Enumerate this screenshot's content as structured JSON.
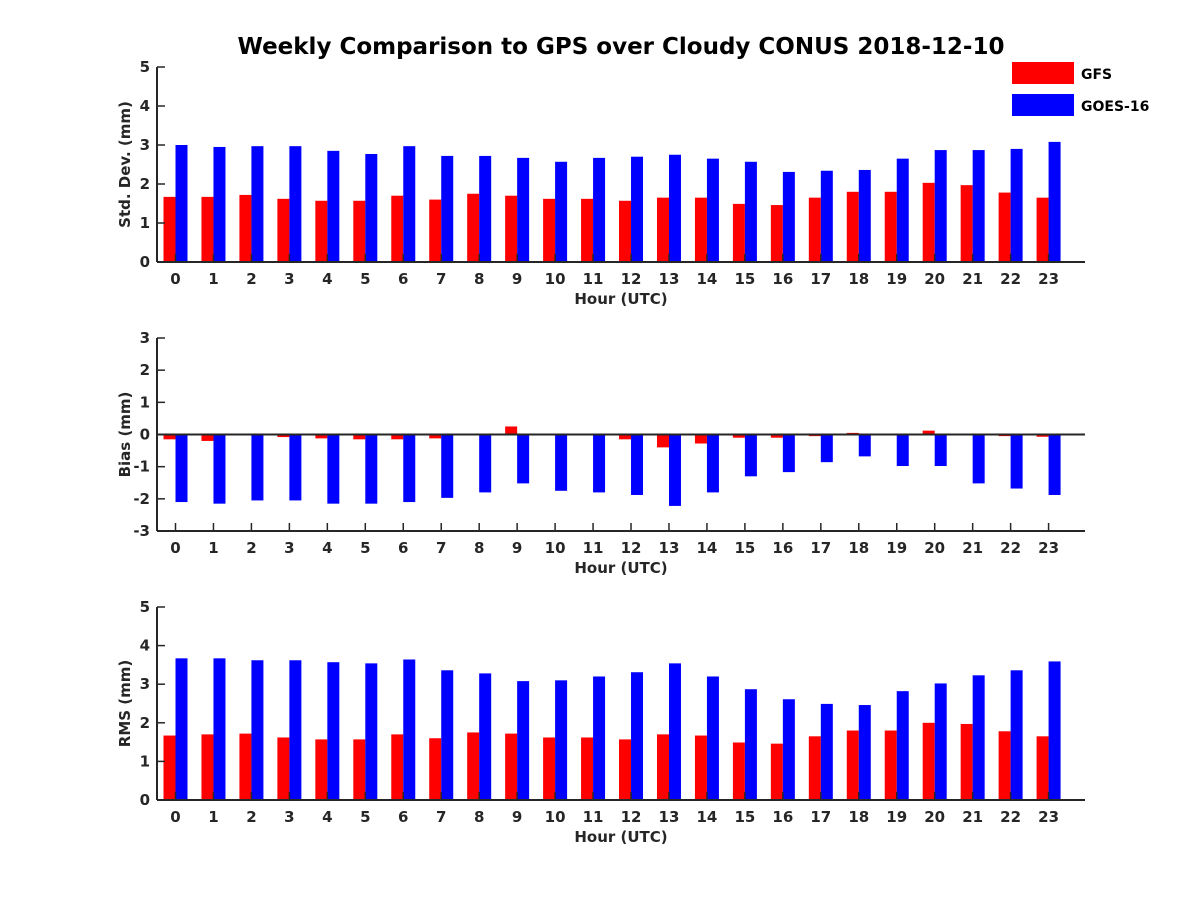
{
  "figure": {
    "title": "Weekly Comparison to GPS over Cloudy CONUS 2018-12-10"
  },
  "legend": {
    "placement": "top-right",
    "entries": [
      {
        "name": "GFS",
        "color": "#ff0000"
      },
      {
        "name": "GOES-16",
        "color": "#0000ff"
      }
    ]
  },
  "chart_data": [
    {
      "type": "bar",
      "xlabel": "Hour (UTC)",
      "ylabel": "Std. Dev. (mm)",
      "ylim": [
        0,
        5
      ],
      "yticks": [
        0,
        1,
        2,
        3,
        4,
        5
      ],
      "categories": [
        "0",
        "1",
        "2",
        "3",
        "4",
        "5",
        "6",
        "7",
        "8",
        "9",
        "10",
        "11",
        "12",
        "13",
        "14",
        "15",
        "16",
        "17",
        "18",
        "19",
        "20",
        "21",
        "22",
        "23"
      ],
      "series": [
        {
          "name": "GFS",
          "color": "#ff0000",
          "values": [
            1.67,
            1.67,
            1.72,
            1.62,
            1.57,
            1.57,
            1.7,
            1.6,
            1.75,
            1.7,
            1.62,
            1.62,
            1.57,
            1.65,
            1.65,
            1.49,
            1.46,
            1.65,
            1.8,
            1.8,
            2.03,
            1.97,
            1.78,
            1.65
          ]
        },
        {
          "name": "GOES-16",
          "color": "#0000ff",
          "values": [
            3.0,
            2.95,
            2.97,
            2.97,
            2.85,
            2.77,
            2.97,
            2.72,
            2.72,
            2.67,
            2.57,
            2.67,
            2.7,
            2.75,
            2.65,
            2.57,
            2.31,
            2.34,
            2.36,
            2.65,
            2.87,
            2.87,
            2.9,
            3.08
          ]
        }
      ]
    },
    {
      "type": "bar",
      "xlabel": "Hour (UTC)",
      "ylabel": "Bias (mm)",
      "ylim": [
        -3,
        3
      ],
      "yticks": [
        -3,
        -2,
        -1,
        0,
        1,
        2,
        3
      ],
      "zero_line": true,
      "categories": [
        "0",
        "1",
        "2",
        "3",
        "4",
        "5",
        "6",
        "7",
        "8",
        "9",
        "10",
        "11",
        "12",
        "13",
        "14",
        "15",
        "16",
        "17",
        "18",
        "19",
        "20",
        "21",
        "22",
        "23"
      ],
      "series": [
        {
          "name": "GFS",
          "color": "#ff0000",
          "values": [
            -0.15,
            -0.2,
            -0.03,
            -0.08,
            -0.12,
            -0.15,
            -0.15,
            -0.12,
            -0.02,
            0.25,
            -0.03,
            -0.03,
            -0.15,
            -0.4,
            -0.28,
            -0.1,
            -0.1,
            -0.05,
            0.05,
            0.0,
            0.12,
            -0.02,
            -0.05,
            -0.07
          ]
        },
        {
          "name": "GOES-16",
          "color": "#0000ff",
          "values": [
            -2.1,
            -2.15,
            -2.05,
            -2.05,
            -2.15,
            -2.15,
            -2.1,
            -1.97,
            -1.8,
            -1.52,
            -1.75,
            -1.8,
            -1.88,
            -2.22,
            -1.8,
            -1.3,
            -1.17,
            -0.86,
            -0.68,
            -0.98,
            -0.98,
            -1.52,
            -1.68,
            -1.88
          ]
        }
      ]
    },
    {
      "type": "bar",
      "xlabel": "Hour (UTC)",
      "ylabel": "RMS (mm)",
      "ylim": [
        0,
        5
      ],
      "yticks": [
        0,
        1,
        2,
        3,
        4,
        5
      ],
      "categories": [
        "0",
        "1",
        "2",
        "3",
        "4",
        "5",
        "6",
        "7",
        "8",
        "9",
        "10",
        "11",
        "12",
        "13",
        "14",
        "15",
        "16",
        "17",
        "18",
        "19",
        "20",
        "21",
        "22",
        "23"
      ],
      "series": [
        {
          "name": "GFS",
          "color": "#ff0000",
          "values": [
            1.67,
            1.7,
            1.72,
            1.62,
            1.57,
            1.57,
            1.7,
            1.6,
            1.75,
            1.72,
            1.62,
            1.62,
            1.57,
            1.7,
            1.67,
            1.49,
            1.46,
            1.65,
            1.8,
            1.8,
            2.0,
            1.97,
            1.78,
            1.65
          ]
        },
        {
          "name": "GOES-16",
          "color": "#0000ff",
          "values": [
            3.67,
            3.67,
            3.62,
            3.62,
            3.57,
            3.54,
            3.64,
            3.36,
            3.28,
            3.08,
            3.1,
            3.2,
            3.31,
            3.54,
            3.2,
            2.87,
            2.61,
            2.49,
            2.46,
            2.82,
            3.02,
            3.23,
            3.36,
            3.59
          ]
        }
      ]
    }
  ]
}
